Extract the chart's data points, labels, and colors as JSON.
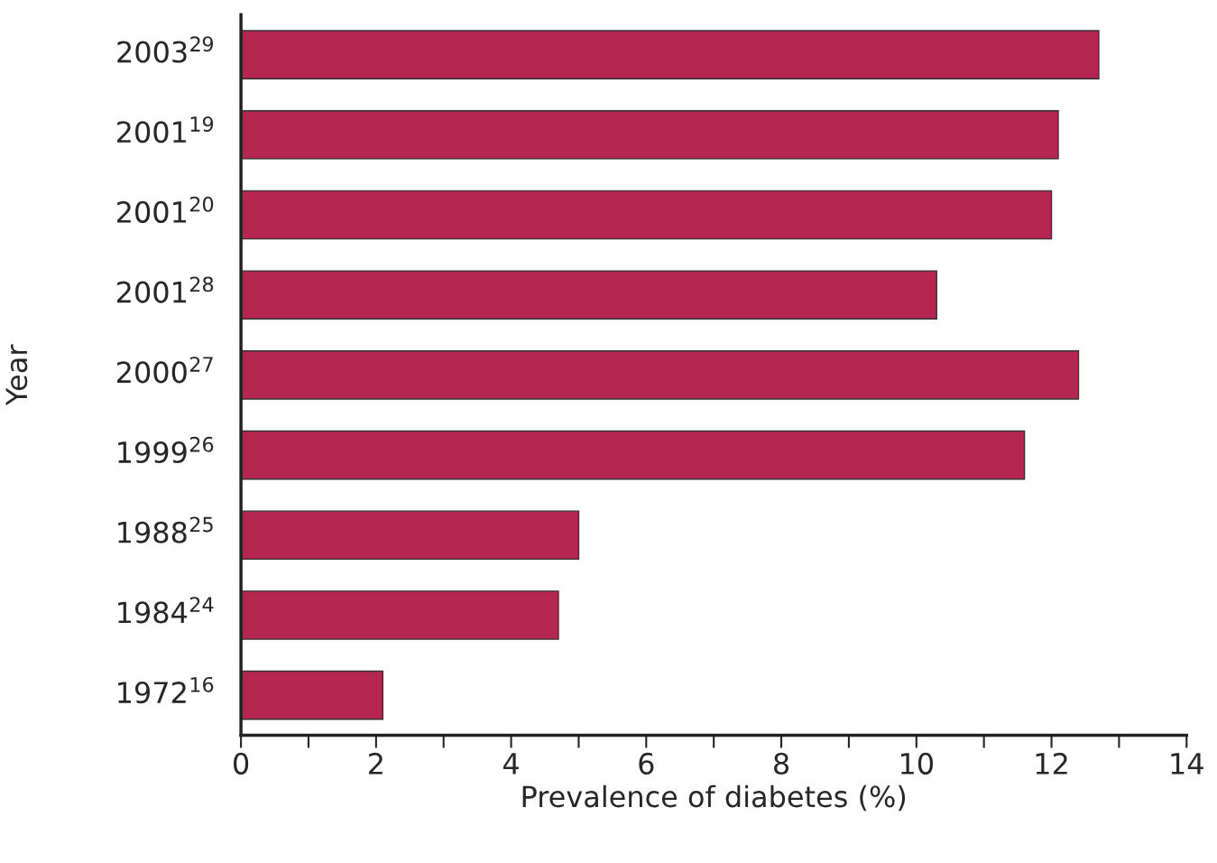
{
  "chart_data": {
    "type": "bar",
    "orientation": "horizontal",
    "xlabel": "Prevalence of diabetes (%)",
    "ylabel": "Year",
    "categories": [
      "2003$^{29}$",
      "2001$^{19}$",
      "2001$^{20}$",
      "2001$^{28}$",
      "2000$^{27}$",
      "1999$^{26}$",
      "1988$^{25}$",
      "1984$^{24}$",
      "1972$^{16}$"
    ],
    "values": [
      12.7,
      12.1,
      12.0,
      10.3,
      12.4,
      11.6,
      5.0,
      4.7,
      2.1
    ],
    "color": "#b52651",
    "xlim": [
      0,
      14
    ],
    "xticks": [
      0,
      {
        "value": 1,
        "label": null
      },
      2,
      {
        "value": 3,
        "label": null
      },
      4,
      {
        "value": 5,
        "label": null
      },
      6,
      {
        "value": 7,
        "label": null
      },
      8,
      {
        "value": 9,
        "label": null
      },
      10,
      {
        "value": 11,
        "label": null
      },
      12,
      {
        "value": 13,
        "label": null
      },
      14
    ],
    "grid": false,
    "legend": false
  }
}
